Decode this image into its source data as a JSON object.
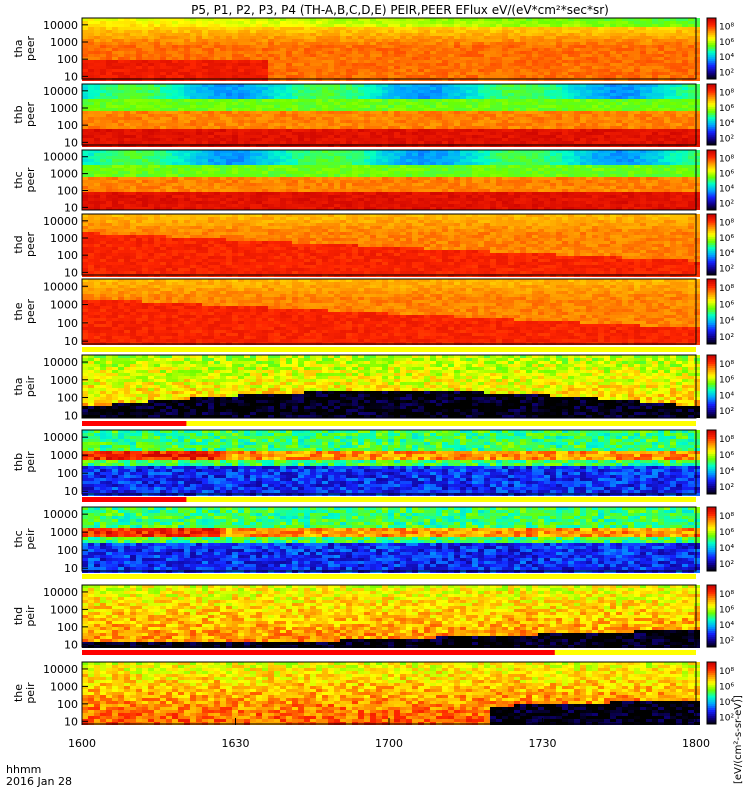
{
  "title": "P5, P1, P2, P3, P4 (TH-A,B,C,D,E) PEIR,PEER EFlux eV/(eV*cm²*sec*sr)",
  "time_footer": {
    "label": "hhmm",
    "date": "2016 Jan 28"
  },
  "colorbar_label": "[eV/(cm²-s-sr-eV)]",
  "colors": {
    "background": "#ffffff",
    "flag_bar": "#ff0000",
    "flag_bg": "#ffff00",
    "spectrogram_palette": [
      "#000000",
      "#10008f",
      "#1424ff",
      "#00a8ff",
      "#00ffc8",
      "#6cff00",
      "#ffff00",
      "#ff9a00",
      "#ff2600",
      "#c80000"
    ]
  },
  "chart_data": {
    "type": "heatmap",
    "x_axis": {
      "label": "hhmm",
      "ticks": [
        "1600",
        "1630",
        "1700",
        "1730",
        "1800"
      ],
      "range": [
        "16:00",
        "18:00"
      ]
    },
    "y_axis": {
      "scale": "log",
      "unit": "eV"
    },
    "panels": [
      {
        "probe": "tha",
        "species": "peer",
        "yticks": [
          "10",
          "100",
          "1000",
          "10000"
        ],
        "ylim": [
          7,
          25000
        ],
        "cbar_ticks": [
          "10²",
          "10⁴",
          "10⁶",
          "10⁸"
        ],
        "profile": "peer_a",
        "flag": false
      },
      {
        "probe": "thb",
        "species": "peer",
        "yticks": [
          "10",
          "100",
          "1000",
          "10000"
        ],
        "ylim": [
          7,
          25000
        ],
        "cbar_ticks": [
          "10²",
          "10⁴",
          "10⁶",
          "10⁸"
        ],
        "profile": "peer_bc",
        "flag": false
      },
      {
        "probe": "thc",
        "species": "peer",
        "yticks": [
          "10",
          "100",
          "1000",
          "10000"
        ],
        "ylim": [
          7,
          25000
        ],
        "cbar_ticks": [
          "10²",
          "10⁴",
          "10⁶",
          "10⁸"
        ],
        "profile": "peer_bc",
        "flag": false
      },
      {
        "probe": "thd",
        "species": "peer",
        "yticks": [
          "10",
          "100",
          "1000",
          "10000"
        ],
        "ylim": [
          7,
          25000
        ],
        "cbar_ticks": [
          "10²",
          "10⁴",
          "10⁶",
          "10⁸"
        ],
        "profile": "peer_de",
        "flag": false
      },
      {
        "probe": "the",
        "species": "peer",
        "yticks": [
          "10",
          "100",
          "1000",
          "10000"
        ],
        "ylim": [
          7,
          25000
        ],
        "cbar_ticks": [
          "10²",
          "10⁴",
          "10⁶",
          "10⁸"
        ],
        "profile": "peer_de",
        "flag": true,
        "flag_red_frac": [
          0,
          0.0
        ]
      },
      {
        "probe": "tha",
        "species": "peir",
        "yticks": [
          "10",
          "100",
          "1000",
          "10000"
        ],
        "ylim": [
          7,
          25000
        ],
        "cbar_ticks": [
          "10²",
          "10⁴",
          "10⁶",
          "10⁸"
        ],
        "profile": "peir_a",
        "flag": true,
        "flag_red_frac": [
          0,
          0.17
        ]
      },
      {
        "probe": "thb",
        "species": "peir",
        "yticks": [
          "10",
          "100",
          "1000",
          "10000"
        ],
        "ylim": [
          7,
          25000
        ],
        "cbar_ticks": [
          "10²",
          "10⁴",
          "10⁶",
          "10⁸"
        ],
        "profile": "peir_bc",
        "flag": true,
        "flag_red_frac": [
          0,
          0.17
        ]
      },
      {
        "probe": "thc",
        "species": "peir",
        "yticks": [
          "10",
          "100",
          "1000",
          "10000"
        ],
        "ylim": [
          7,
          25000
        ],
        "cbar_ticks": [
          "10²",
          "10⁴",
          "10⁶",
          "10⁸"
        ],
        "profile": "peir_bc",
        "flag": true,
        "flag_red_frac": [
          0,
          0.0
        ]
      },
      {
        "probe": "thd",
        "species": "peir",
        "yticks": [
          "10",
          "100",
          "1000",
          "10000"
        ],
        "ylim": [
          7,
          25000
        ],
        "cbar_ticks": [
          "10²",
          "10⁴",
          "10⁶",
          "10⁸"
        ],
        "profile": "peir_d",
        "flag": true,
        "flag_red_frac": [
          0,
          0.77
        ]
      },
      {
        "probe": "the",
        "species": "peir",
        "yticks": [
          "10",
          "100",
          "1000",
          "10000"
        ],
        "ylim": [
          7,
          25000
        ],
        "cbar_ticks": [
          "10²",
          "10⁴",
          "10⁶",
          "10⁸"
        ],
        "profile": "peir_e",
        "flag": false
      }
    ]
  }
}
